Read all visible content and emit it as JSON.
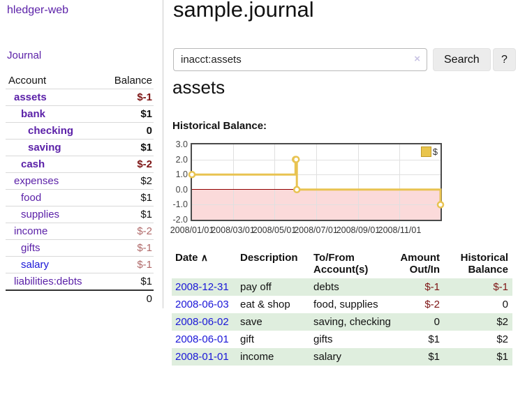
{
  "app": {
    "title": "hledger-web"
  },
  "sidebar": {
    "journal_link": "Journal",
    "accounts": {
      "header": {
        "account": "Account",
        "balance": "Balance"
      },
      "rows": [
        {
          "name": "assets",
          "balance": "$-1",
          "level": 1,
          "in_query": true,
          "unvisited": false
        },
        {
          "name": "bank",
          "balance": "$1",
          "level": 2,
          "in_query": true,
          "unvisited": false
        },
        {
          "name": "checking",
          "balance": "0",
          "level": 3,
          "in_query": true,
          "unvisited": false
        },
        {
          "name": "saving",
          "balance": "$1",
          "level": 3,
          "in_query": true,
          "unvisited": false
        },
        {
          "name": "cash",
          "balance": "$-2",
          "level": 2,
          "in_query": true,
          "unvisited": false
        },
        {
          "name": "expenses",
          "balance": "$2",
          "level": 1,
          "in_query": false,
          "unvisited": false
        },
        {
          "name": "food",
          "balance": "$1",
          "level": 2,
          "in_query": false,
          "unvisited": false
        },
        {
          "name": "supplies",
          "balance": "$1",
          "level": 2,
          "in_query": false,
          "unvisited": false
        },
        {
          "name": "income",
          "balance": "$-2",
          "level": 1,
          "in_query": false,
          "unvisited": false
        },
        {
          "name": "gifts",
          "balance": "$-1",
          "level": 2,
          "in_query": false,
          "unvisited": false
        },
        {
          "name": "salary",
          "balance": "$-1",
          "level": 2,
          "in_query": false,
          "unvisited": true
        },
        {
          "name": "liabilities:debts",
          "balance": "$1",
          "level": 1,
          "in_query": false,
          "unvisited": false
        }
      ],
      "total": "0"
    }
  },
  "main": {
    "title": "sample.journal",
    "search": {
      "value": "inacct:assets",
      "clear": "×",
      "search_button": "Search",
      "help_button": "?"
    },
    "heading": "assets",
    "chart_title": "Historical Balance:",
    "register": {
      "headers": [
        "Date",
        "Description",
        "To/From Account(s)",
        "Amount Out/In",
        "Historical Balance"
      ],
      "sort_arrow": "∧",
      "rows": [
        {
          "date": "2008-12-31",
          "description": "pay off",
          "accounts": "debts",
          "amount": "$-1",
          "balance": "$-1"
        },
        {
          "date": "2008-06-03",
          "description": "eat & shop",
          "accounts": "food, supplies",
          "amount": "$-2",
          "balance": "0"
        },
        {
          "date": "2008-06-02",
          "description": "save",
          "accounts": "saving, checking",
          "amount": "0",
          "balance": "$2"
        },
        {
          "date": "2008-06-01",
          "description": "gift",
          "accounts": "gifts",
          "amount": "$1",
          "balance": "$2"
        },
        {
          "date": "2008-01-01",
          "description": "income",
          "accounts": "salary",
          "amount": "$1",
          "balance": "$1"
        }
      ]
    }
  },
  "chart_data": {
    "type": "line",
    "title": "Historical Balance:",
    "step": true,
    "series": [
      {
        "name": "$",
        "points": [
          [
            "2008-01-01",
            1
          ],
          [
            "2008-06-01",
            2
          ],
          [
            "2008-06-02",
            2
          ],
          [
            "2008-06-03",
            0
          ],
          [
            "2008-12-31",
            -1
          ]
        ]
      }
    ],
    "ylim": [
      -2,
      3
    ],
    "y_ticks": [
      "3.0",
      "2.0",
      "1.0",
      "0.0",
      "-1.0",
      "-2.0"
    ],
    "x_ticks": [
      "2008/01/01",
      "2008/03/01",
      "2008/05/01",
      "2008/07/01",
      "2008/09/01",
      "2008/11/01"
    ],
    "legend": {
      "position": "top-right",
      "label": "$"
    },
    "grid": true,
    "colors": {
      "line": "#e8c351",
      "marker_fill": "#ffffff",
      "negative_fill": "#fbdada",
      "zero_line": "#900000",
      "stripe_green": "#dfeede",
      "link_purple": "#5b21a8",
      "link_blue": "#1a16d8",
      "negative_strong": "#7d1515",
      "negative_soft": "#b06a6a"
    }
  }
}
